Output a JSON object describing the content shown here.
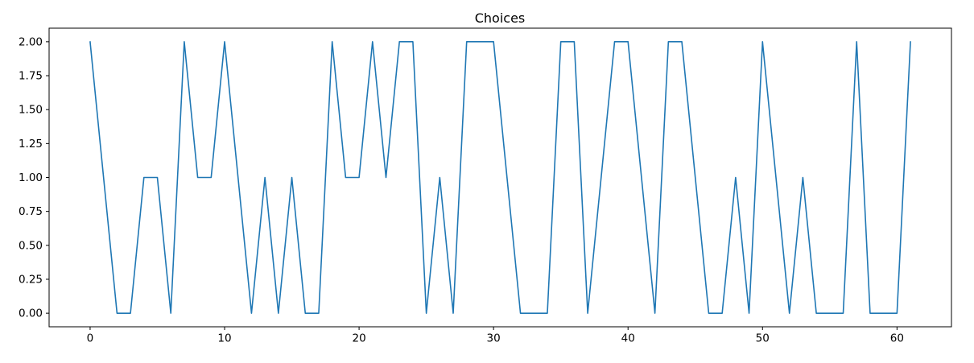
{
  "chart_data": {
    "type": "line",
    "title": "Choices",
    "x": [
      0,
      1,
      2,
      3,
      4,
      5,
      6,
      7,
      8,
      9,
      10,
      11,
      12,
      13,
      14,
      15,
      16,
      17,
      18,
      19,
      20,
      21,
      22,
      23,
      24,
      25,
      26,
      27,
      28,
      29,
      30,
      31,
      32,
      33,
      34,
      35,
      36,
      37,
      38,
      39,
      40,
      41,
      42,
      43,
      44,
      45,
      46,
      47,
      48,
      49,
      50,
      51,
      52,
      53,
      54,
      55,
      56,
      57,
      58,
      59,
      60,
      61
    ],
    "values": [
      2,
      1,
      0,
      0,
      1,
      1,
      0,
      2,
      1,
      1,
      2,
      1,
      0,
      1,
      0,
      1,
      0,
      0,
      2,
      1,
      1,
      2,
      1,
      2,
      2,
      0,
      1,
      0,
      2,
      2,
      2,
      1,
      0,
      0,
      0,
      2,
      2,
      0,
      1,
      2,
      2,
      1,
      0,
      2,
      2,
      1,
      0,
      0,
      1,
      0,
      2,
      1,
      0,
      1,
      0,
      0,
      0,
      2,
      0,
      0,
      0,
      2
    ],
    "xlabel": "",
    "ylabel": "",
    "xticks": [
      0,
      10,
      20,
      30,
      40,
      50,
      60
    ],
    "ytick_labels": [
      "0.00",
      "0.25",
      "0.50",
      "0.75",
      "1.00",
      "1.25",
      "1.50",
      "1.75",
      "2.00"
    ],
    "ytick_values": [
      0,
      0.25,
      0.5,
      0.75,
      1,
      1.25,
      1.5,
      1.75,
      2
    ],
    "xlim": [
      -3.05,
      64.05
    ],
    "ylim": [
      -0.1,
      2.1
    ],
    "grid": false,
    "legend": "none",
    "line_color": "#1f77b4",
    "axis_color": "#000000",
    "background_color": "#ffffff"
  }
}
